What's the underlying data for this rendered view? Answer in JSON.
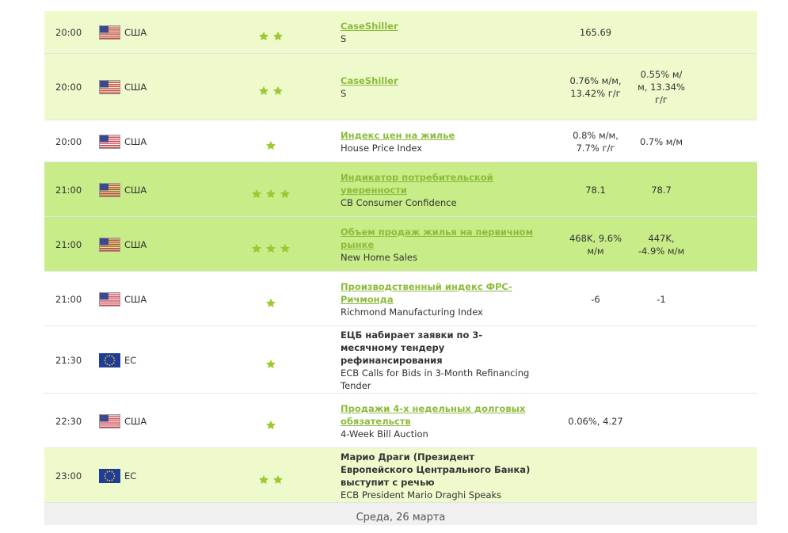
{
  "rows": [
    {
      "time": "20:00",
      "flag": "us",
      "country": "США",
      "importance": 2,
      "background": "#eefacc",
      "event": {
        "title": "CaseShiller",
        "subtitle": "S",
        "link": true
      },
      "actual": "165.69"
    },
    {
      "time": "20:00",
      "flag": "us",
      "country": "США",
      "importance": 2,
      "background": "#eefacc",
      "event": {
        "title": "CaseShiller",
        "subtitle": "S",
        "link": true
      },
      "actual": "0.76% м/м, 13.42% г/г",
      "forecast": "0.55% м/м, 13.34% г/г"
    },
    {
      "time": "20:00",
      "flag": "us",
      "country": "США",
      "importance": 1,
      "background": "#ffffff",
      "event": {
        "title": "Индекс цен на жилье",
        "subtitle": "House Price Index",
        "link": true
      },
      "actual": "0.8% м/м, 7.7% г/г",
      "forecast": "0.7% м/м"
    },
    {
      "time": "21:00",
      "flag": "us",
      "country": "США",
      "importance": 3,
      "background": "#c8ec88",
      "event": {
        "title": "Индикатор потребительской уверенности",
        "subtitle": "CB Consumer Confidence",
        "link": true
      },
      "actual": "78.1",
      "forecast": "78.7"
    },
    {
      "time": "21:00",
      "flag": "us",
      "country": "США",
      "importance": 3,
      "background": "#c8ec88",
      "event": {
        "title": "Объем продаж жилья на первичном рынке",
        "subtitle": "New Home Sales",
        "link": true
      },
      "actual": "468K, 9.6% м/м",
      "forecast": "447K, -4.9% м/м"
    },
    {
      "time": "21:00",
      "flag": "us",
      "country": "США",
      "importance": 1,
      "background": "#ffffff",
      "event": {
        "title": "Производственный индекс ФРС-Ричмонда",
        "subtitle": "Richmond Manufacturing Index",
        "link": true
      },
      "actual": "-6",
      "forecast": "-1"
    },
    {
      "time": "21:30",
      "flag": "eu",
      "country": "ЕС",
      "importance": 1,
      "background": "#ffffff",
      "event": {
        "title": "ЕЦБ набирает заявки по 3-месячному тендеру рефинансирования",
        "subtitle": "ECB Calls for Bids in 3-Month Refinancing Tender",
        "link": false
      }
    },
    {
      "time": "22:30",
      "flag": "us",
      "country": "США",
      "importance": 1,
      "background": "#ffffff",
      "event": {
        "title": "Продажи 4-х недельных долговых обязательств",
        "subtitle": "4-Week Bill Auction",
        "link": true
      },
      "actual": "0.06%, 4.27"
    },
    {
      "time": "23:00",
      "flag": "eu",
      "country": "ЕС",
      "importance": 2,
      "background": "#eefacc",
      "event": {
        "title": "Марио Драги (Президент Европейского Центрального Банка) выступит с речью",
        "subtitle": "ECB President Mario Draghi Speaks",
        "link": false
      }
    }
  ],
  "footer": "Среда, 26 марта"
}
